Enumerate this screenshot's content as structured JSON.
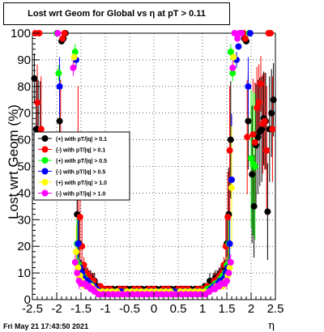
{
  "chart_data": {
    "type": "scatter",
    "title": "Lost wrt Geom for Global vs  η at pT > 0.11",
    "ylabel": "Lost wrt Geom (%)",
    "xlabel": "η",
    "xlim": [
      -2.5,
      2.5
    ],
    "ylim": [
      0,
      100
    ],
    "x_ticks": [
      "-2.5",
      "-2",
      "-1.5",
      "-1",
      "-0.5",
      "0",
      "0.5",
      "1",
      "1.5",
      "2",
      "2.5"
    ],
    "y_ticks": [
      "0",
      "10",
      "20",
      "30",
      "40",
      "50",
      "60",
      "70",
      "80",
      "90",
      "100"
    ],
    "grid": true,
    "legend_position": "left-middle",
    "series": [
      {
        "name": "(+) with pT/|q| > 0.1",
        "color": "#000000",
        "x": [
          -2.46,
          -2.42,
          -2.38,
          -2.34,
          -1.94,
          -1.9,
          -1.86,
          -1.82,
          -1.58,
          -1.54,
          -1.5,
          -1.46,
          -1.42,
          -1.38,
          -1.34,
          -1.3,
          -1.26,
          -1.22,
          -1.15,
          -1.05,
          -0.95,
          -0.85,
          -0.75,
          -0.65,
          -0.55,
          -0.45,
          -0.35,
          -0.25,
          -0.15,
          -0.05,
          0.05,
          0.15,
          0.25,
          0.35,
          0.45,
          0.55,
          0.65,
          0.75,
          0.85,
          0.95,
          1.05,
          1.15,
          1.22,
          1.26,
          1.3,
          1.34,
          1.38,
          1.42,
          1.46,
          1.5,
          1.54,
          1.58,
          1.82,
          1.86,
          1.9,
          1.94,
          2.02,
          2.06,
          2.1,
          2.14,
          2.18,
          2.22,
          2.26,
          2.3,
          2.34,
          2.38,
          2.42,
          2.46
        ],
        "y": [
          83,
          64,
          61,
          60,
          67,
          97,
          98,
          100,
          32,
          21,
          12,
          10,
          10,
          9,
          8,
          8,
          7,
          7,
          5,
          4,
          4,
          4,
          4,
          4,
          4,
          4,
          4,
          4,
          4,
          4,
          4,
          4,
          4,
          4,
          4,
          4,
          4,
          4,
          4,
          4,
          5,
          7,
          7,
          8,
          8,
          9,
          10,
          10,
          12,
          21,
          32,
          60,
          100,
          98,
          97,
          67,
          47,
          35,
          58,
          61,
          63,
          64,
          68,
          67,
          33,
          64,
          70,
          75
        ]
      },
      {
        "name": "(-) with pT/|q| > 0.1",
        "color": "#ff0000",
        "x": [
          -2.44,
          -2.4,
          -2.36,
          -2.32,
          -1.92,
          -1.88,
          -1.84,
          -1.56,
          -1.52,
          -1.48,
          -1.44,
          -1.4,
          -1.36,
          -1.32,
          -1.28,
          -1.24,
          -1.1,
          -1.0,
          -0.9,
          -0.8,
          -0.7,
          -0.6,
          -0.5,
          -0.4,
          -0.3,
          -0.2,
          -0.1,
          0.0,
          0.1,
          0.2,
          0.3,
          0.4,
          0.5,
          0.6,
          0.7,
          0.8,
          0.9,
          1.0,
          1.1,
          1.24,
          1.28,
          1.32,
          1.36,
          1.4,
          1.44,
          1.48,
          1.52,
          1.56,
          1.84,
          1.88,
          1.92,
          2.04,
          2.08,
          2.12,
          2.16,
          2.2,
          2.24,
          2.28,
          2.32,
          2.36,
          2.4,
          2.44
        ],
        "y": [
          100,
          74,
          100,
          64,
          61,
          98,
          100,
          56,
          31,
          20,
          13,
          10,
          9,
          8,
          7,
          7,
          5,
          4,
          4,
          3,
          4,
          4,
          3,
          4,
          4,
          3,
          4,
          4,
          3,
          4,
          4,
          3,
          4,
          4,
          4,
          3,
          4,
          4,
          5,
          7,
          7,
          8,
          9,
          10,
          13,
          20,
          31,
          56,
          100,
          98,
          61,
          62,
          59,
          72,
          74,
          81,
          66,
          67,
          56,
          100,
          100,
          64
        ]
      },
      {
        "name": "(+) with pT/|q| > 0.5",
        "color": "#00ff00",
        "x": [
          -2.0,
          -1.96,
          -1.62,
          -1.58,
          -1.54,
          -1.5,
          -1.46,
          -1.42,
          -1.38,
          -1.34,
          -1.3,
          -1.26,
          -1.2,
          -1.1,
          -1.0,
          -0.9,
          -0.8,
          -0.7,
          -0.6,
          -0.5,
          -0.4,
          -0.3,
          -0.2,
          -0.1,
          0.0,
          0.1,
          0.2,
          0.3,
          0.4,
          0.5,
          0.6,
          0.7,
          0.8,
          0.9,
          1.0,
          1.1,
          1.2,
          1.26,
          1.3,
          1.34,
          1.38,
          1.42,
          1.46,
          1.5,
          1.54,
          1.58,
          1.62,
          1.96,
          2.0,
          2.04,
          2.08
        ],
        "y": [
          100,
          85,
          93,
          21,
          13,
          10,
          9,
          8,
          7,
          6,
          6,
          5,
          4,
          3,
          3,
          3,
          3,
          3,
          3,
          3,
          3,
          3,
          3,
          3,
          3,
          3,
          3,
          3,
          3,
          3,
          3,
          3,
          3,
          3,
          3,
          4,
          5,
          6,
          6,
          7,
          8,
          9,
          10,
          13,
          21,
          93,
          85,
          100,
          53,
          51,
          50
        ]
      },
      {
        "name": "(-) with pT/|q| > 0.5",
        "color": "#0000ff",
        "x": [
          -1.98,
          -1.94,
          -1.6,
          -1.56,
          -1.52,
          -1.48,
          -1.44,
          -1.4,
          -1.36,
          -1.32,
          -1.28,
          -1.24,
          -1.18,
          -1.08,
          -0.98,
          -0.88,
          -0.78,
          -0.68,
          -0.58,
          -0.48,
          -0.38,
          -0.28,
          -0.18,
          -0.08,
          0.02,
          0.12,
          0.22,
          0.32,
          0.42,
          0.52,
          0.62,
          0.72,
          0.82,
          0.92,
          1.02,
          1.12,
          1.18,
          1.24,
          1.28,
          1.32,
          1.36,
          1.4,
          1.44,
          1.48,
          1.52,
          1.56,
          1.6,
          1.7,
          1.74,
          1.94,
          1.98
        ],
        "y": [
          100,
          80,
          90,
          21,
          12,
          10,
          8,
          7,
          7,
          6,
          5,
          5,
          4,
          3,
          3,
          3,
          3,
          3,
          3,
          3,
          3,
          3,
          3,
          3,
          3,
          3,
          3,
          3,
          3,
          3,
          3,
          3,
          3,
          3,
          3,
          3,
          4,
          5,
          5,
          6,
          7,
          7,
          8,
          10,
          12,
          21,
          45,
          90,
          95,
          80,
          100
        ]
      },
      {
        "name": "(+) with pT/|q| > 1.0",
        "color": "#ffff00",
        "x": [
          -1.64,
          -1.6,
          -1.56,
          -1.52,
          -1.48,
          -1.44,
          -1.4,
          -1.36,
          -1.32,
          -1.28,
          -1.24,
          -1.16,
          -1.06,
          -0.96,
          -0.86,
          -0.76,
          -0.66,
          -0.56,
          -0.46,
          -0.36,
          -0.26,
          -0.16,
          -0.06,
          0.04,
          0.14,
          0.24,
          0.34,
          0.44,
          0.54,
          0.64,
          0.74,
          0.84,
          0.94,
          1.04,
          1.14,
          1.24,
          1.28,
          1.32,
          1.36,
          1.4,
          1.44,
          1.48,
          1.52,
          1.56,
          1.6,
          1.64
        ],
        "y": [
          91,
          18,
          12,
          9,
          7,
          6,
          5,
          5,
          5,
          5,
          4,
          3,
          3,
          3,
          3,
          3,
          2,
          3,
          3,
          3,
          3,
          3,
          3,
          3,
          3,
          3,
          3,
          2,
          3,
          3,
          3,
          3,
          3,
          3,
          3,
          4,
          5,
          5,
          5,
          5,
          6,
          7,
          9,
          12,
          42,
          91
        ]
      },
      {
        "name": "(-) with pT/|q| > 1.0",
        "color": "#ff00ff",
        "x": [
          -1.98,
          -1.66,
          -1.62,
          -1.58,
          -1.54,
          -1.5,
          -1.46,
          -1.42,
          -1.38,
          -1.34,
          -1.3,
          -1.26,
          -1.22,
          -1.14,
          -1.04,
          -0.94,
          -0.84,
          -0.74,
          -0.64,
          -0.54,
          -0.44,
          -0.34,
          -0.24,
          -0.14,
          -0.04,
          0.06,
          0.16,
          0.26,
          0.36,
          0.46,
          0.56,
          0.66,
          0.76,
          0.86,
          0.96,
          1.06,
          1.14,
          1.22,
          1.26,
          1.3,
          1.34,
          1.38,
          1.42,
          1.46,
          1.5,
          1.54,
          1.58,
          1.62,
          1.66,
          1.72,
          1.76,
          1.8
        ],
        "y": [
          100,
          87,
          14,
          10,
          7,
          6,
          6,
          6,
          5,
          5,
          4,
          4,
          3,
          2,
          2,
          2,
          2,
          2,
          2,
          2,
          2,
          2,
          2,
          2,
          2,
          2,
          2,
          2,
          2,
          2,
          2,
          2,
          2,
          2,
          2,
          2,
          3,
          4,
          4,
          5,
          5,
          6,
          6,
          6,
          7,
          10,
          14,
          87,
          100,
          98,
          100,
          100
        ]
      }
    ]
  },
  "footer": {
    "timestamp": "Fri May 21 17:43:50 2021"
  }
}
